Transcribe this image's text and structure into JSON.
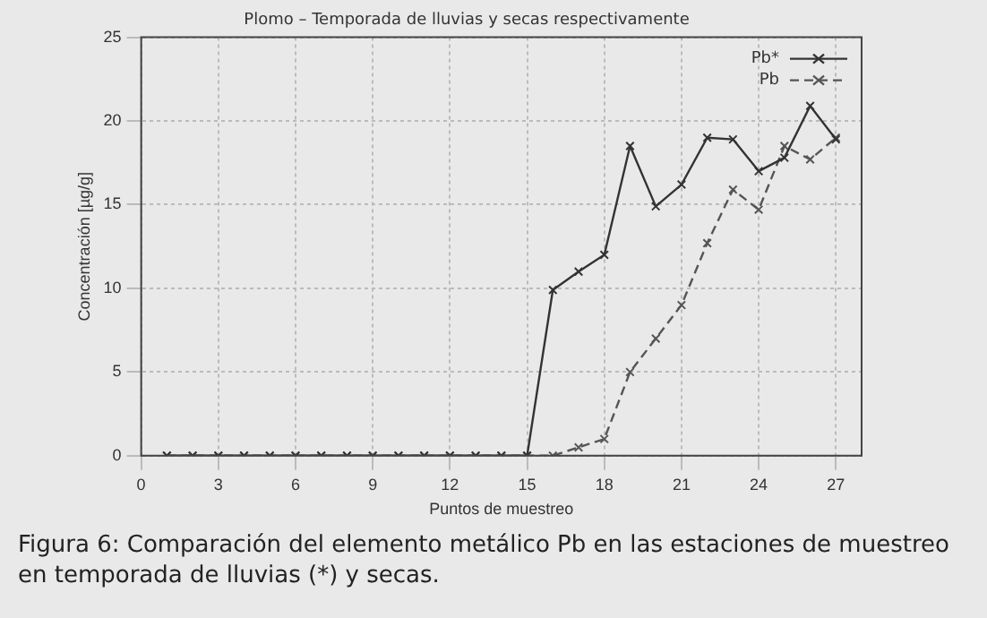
{
  "chart_data": {
    "type": "line",
    "title": "Plomo – Temporada de lluvias y secas respectivamente",
    "xlabel": "Puntos de muestreo",
    "ylabel": "Concentración [µg/g]",
    "x": [
      1,
      2,
      3,
      4,
      5,
      6,
      7,
      8,
      9,
      10,
      11,
      12,
      13,
      14,
      15,
      16,
      17,
      18,
      19,
      20,
      21,
      22,
      23,
      24,
      25,
      26,
      27
    ],
    "series": [
      {
        "name": "Pb*",
        "color": "#333333",
        "marker": "cross",
        "line_style": "solid",
        "values": [
          0,
          0,
          0,
          0,
          0,
          0,
          0,
          0,
          0,
          0,
          0,
          0,
          0,
          0,
          0,
          9.9,
          11,
          12,
          18.5,
          14.9,
          16.2,
          19,
          18.9,
          17,
          17.8,
          20.9,
          18.9
        ]
      },
      {
        "name": "Pb",
        "color": "#555555",
        "marker": "cross",
        "line_style": "dashed",
        "values": [
          0,
          0,
          0,
          0,
          0,
          0,
          0,
          0,
          0,
          0,
          0,
          0,
          0,
          0,
          0,
          0,
          0.5,
          1,
          5,
          7,
          9,
          12.7,
          15.9,
          14.7,
          18.5,
          17.7,
          19
        ]
      }
    ],
    "xlim": [
      0,
      28
    ],
    "xticks": [
      0,
      3,
      6,
      9,
      12,
      15,
      18,
      21,
      24,
      27
    ],
    "ylim": [
      0,
      25
    ],
    "yticks": [
      0,
      5,
      10,
      15,
      20,
      25
    ],
    "grid": true,
    "legend": "top right",
    "annotations": [
      "Figura 6: Comparación del elemento metálico Pb en las estaciones de muestreo en temporada de lluvias (*) y secas."
    ]
  }
}
